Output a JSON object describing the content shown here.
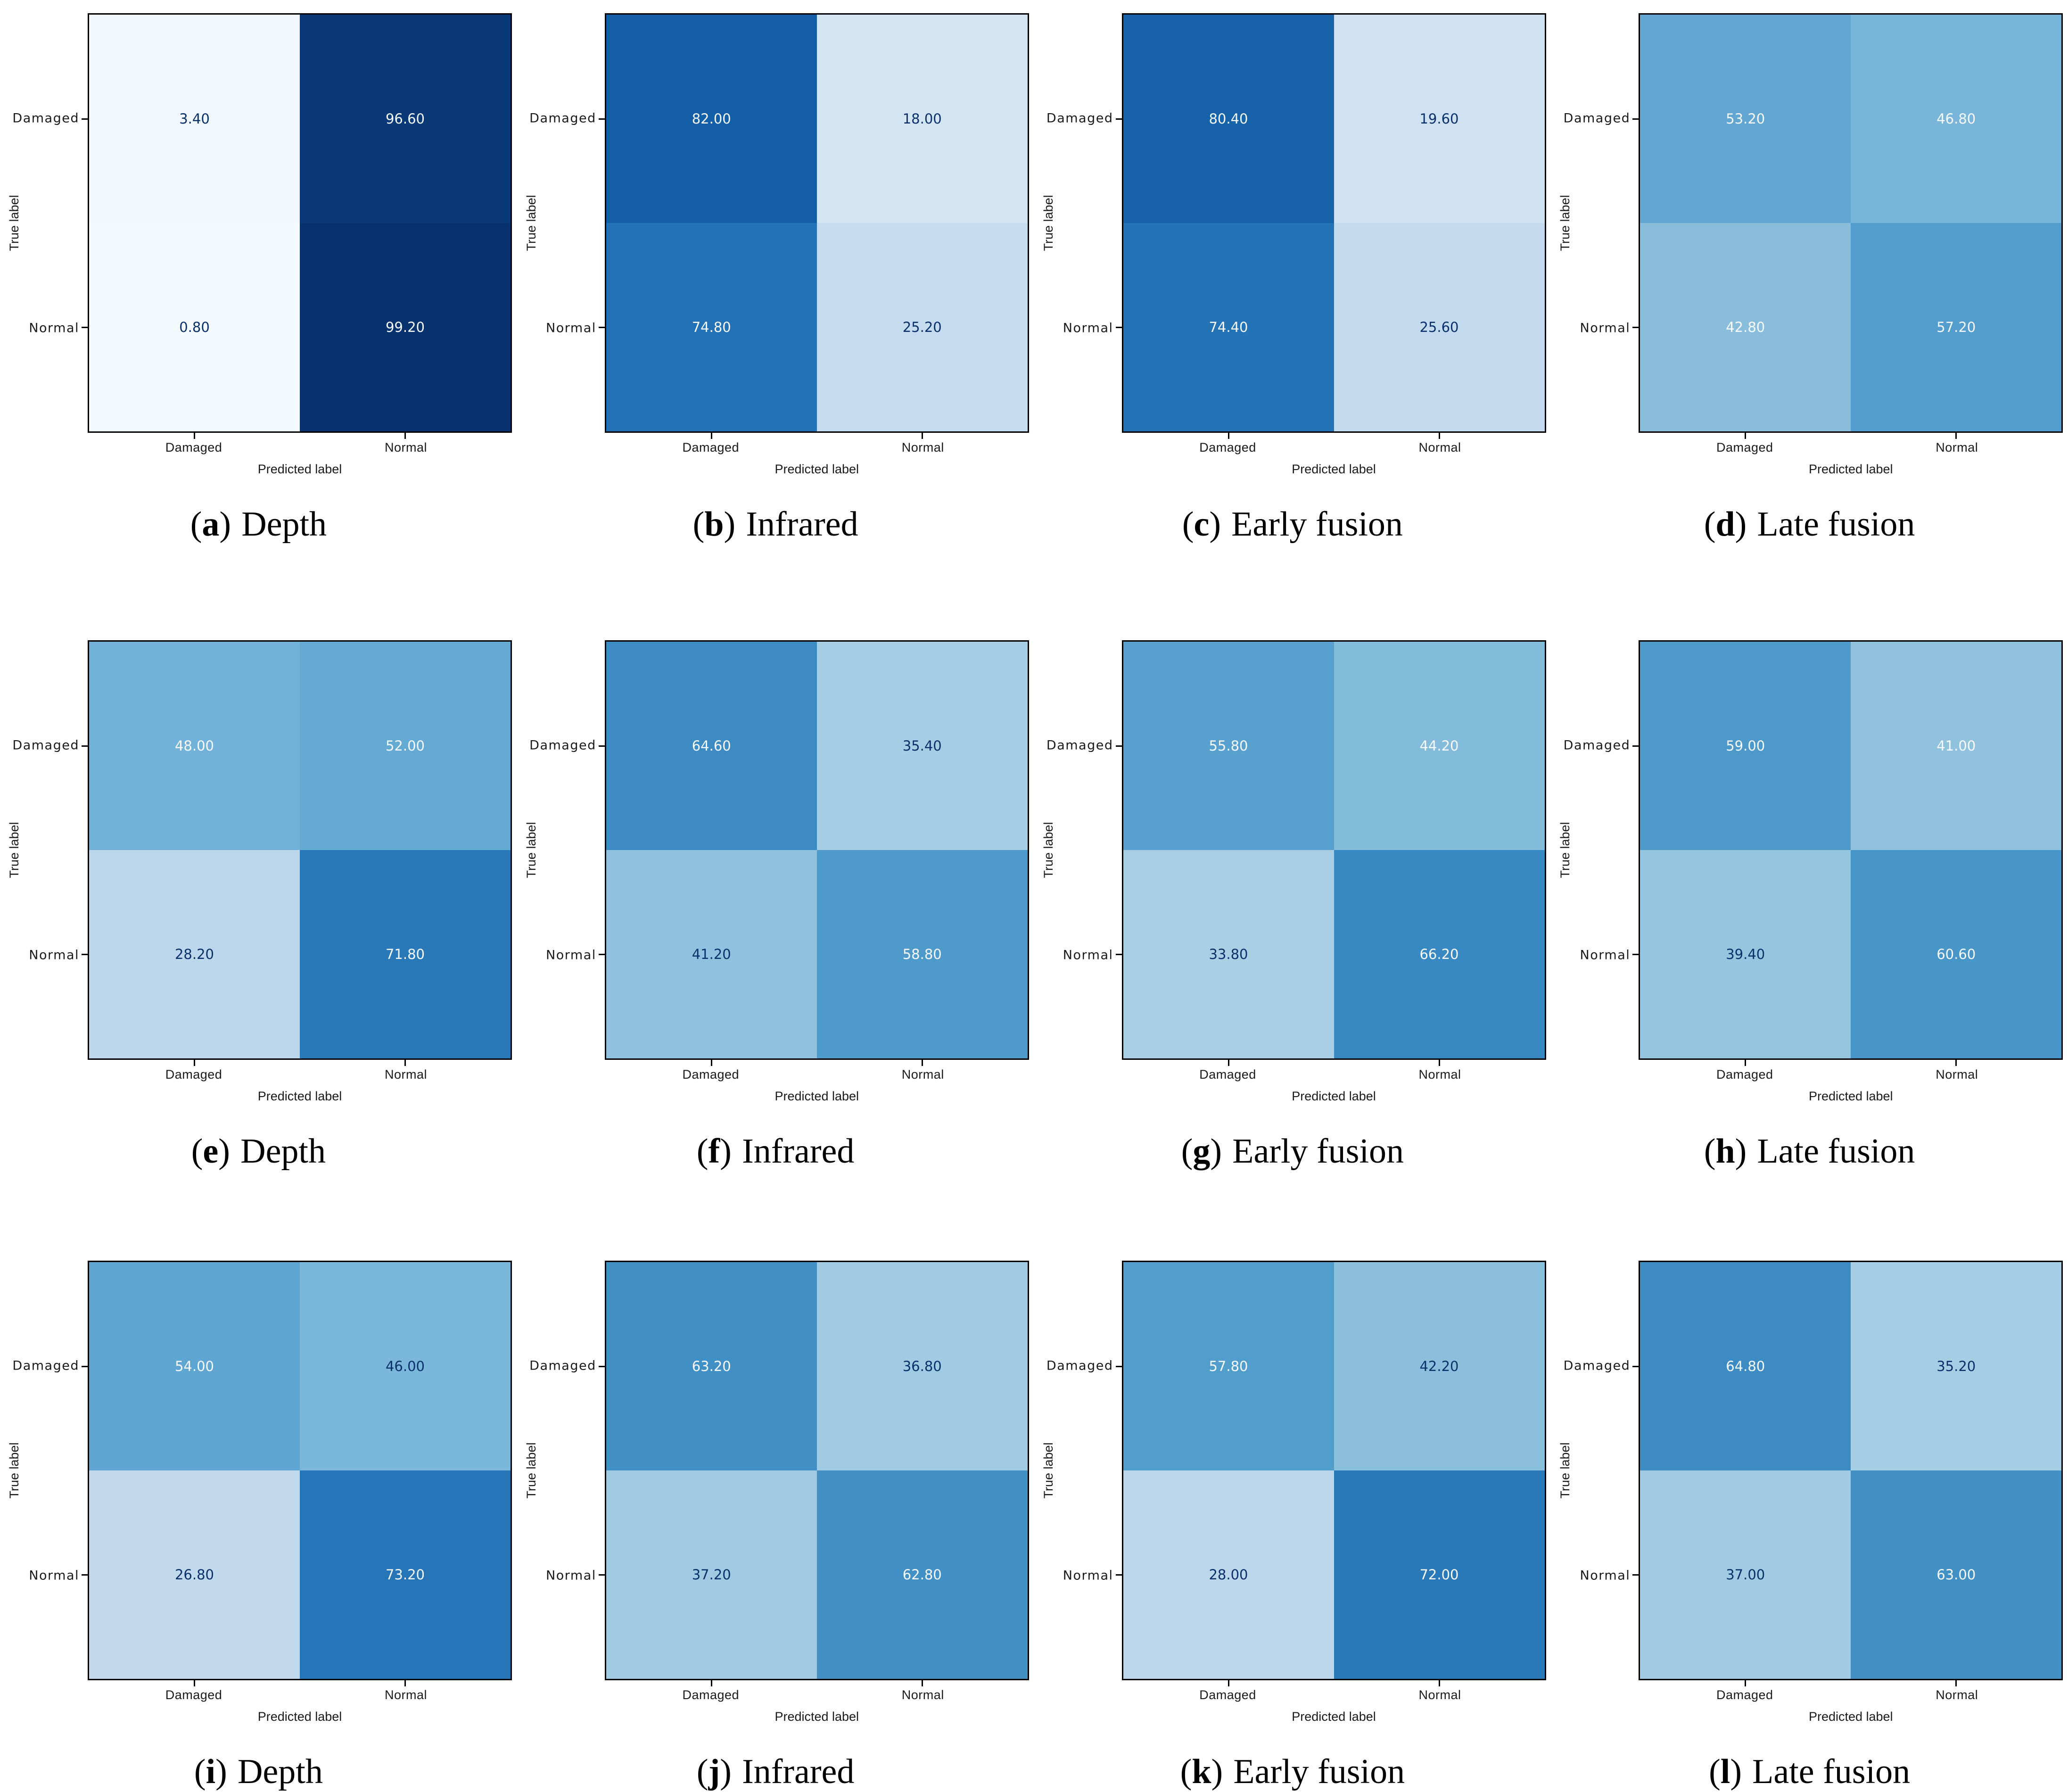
{
  "grid": {
    "rows": 3,
    "cols": 4
  },
  "axes": {
    "xlabel": "Predicted label",
    "ylabel": "True label",
    "x_tick_labels": [
      "Damaged",
      "Normal"
    ],
    "y_tick_labels": [
      "Damaged",
      "Normal"
    ]
  },
  "colors": {
    "background": "#ffffff",
    "spine": "#000000",
    "axis_text": "#1a1a1a",
    "caption_text": "#000000",
    "cell_text_light": "#f7fbff",
    "cell_text_dark": "#08306b",
    "colormap": "Blues",
    "colormap_stops": [
      "#f7fbff",
      "#deebf7",
      "#c6dbef",
      "#9ecae1",
      "#6baed6",
      "#4292c6",
      "#2171b5",
      "#08519c",
      "#08306b"
    ]
  },
  "chart_data": [
    {
      "id": "a",
      "type": "heatmap",
      "title": "Depth",
      "caption": {
        "pre": "(",
        "letter": "a",
        "post": ")",
        "title": "Depth"
      },
      "xlabel": "Predicted label",
      "ylabel": "True label",
      "x_categories": [
        "Damaged",
        "Normal"
      ],
      "y_categories": [
        "Damaged",
        "Normal"
      ],
      "vmin": 0,
      "vmax": 100,
      "matrix": [
        [
          3.4,
          96.6
        ],
        [
          0.8,
          99.2
        ]
      ],
      "cells": [
        {
          "value": 3.4,
          "label": "3.40",
          "bg": "#f0f7fd",
          "fg": "#08306b"
        },
        {
          "value": 96.6,
          "label": "96.60",
          "bg": "#093977",
          "fg": "#f7fbff"
        },
        {
          "value": 0.8,
          "label": "0.80",
          "bg": "#f5fafe",
          "fg": "#08306b"
        },
        {
          "value": 99.2,
          "label": "99.20",
          "bg": "#08326e",
          "fg": "#f7fbff"
        }
      ]
    },
    {
      "id": "b",
      "type": "heatmap",
      "title": "Infrared",
      "caption": {
        "pre": "(",
        "letter": "b",
        "post": ")",
        "title": "Infrared"
      },
      "xlabel": "Predicted label",
      "ylabel": "True label",
      "x_categories": [
        "Damaged",
        "Normal"
      ],
      "y_categories": [
        "Damaged",
        "Normal"
      ],
      "vmin": 0,
      "vmax": 100,
      "matrix": [
        [
          82.0,
          18.0
        ],
        [
          74.8,
          25.2
        ]
      ],
      "cells": [
        {
          "value": 82.0,
          "label": "82.00",
          "bg": "#135fa7",
          "fg": "#f7fbff"
        },
        {
          "value": 18.0,
          "label": "18.00",
          "bg": "#d3e4f3",
          "fg": "#08306b"
        },
        {
          "value": 74.8,
          "label": "74.80",
          "bg": "#2272b5",
          "fg": "#f7fbff"
        },
        {
          "value": 25.2,
          "label": "25.20",
          "bg": "#c5dbef",
          "fg": "#08306b"
        }
      ]
    },
    {
      "id": "c",
      "type": "heatmap",
      "title": "Early fusion",
      "caption": {
        "pre": "(",
        "letter": "c",
        "post": ")",
        "title": "Early fusion"
      },
      "xlabel": "Predicted label",
      "ylabel": "True label",
      "x_categories": [
        "Damaged",
        "Normal"
      ],
      "y_categories": [
        "Damaged",
        "Normal"
      ],
      "vmin": 0,
      "vmax": 100,
      "matrix": [
        [
          80.4,
          19.6
        ],
        [
          74.4,
          25.6
        ]
      ],
      "cells": [
        {
          "value": 80.4,
          "label": "80.40",
          "bg": "#1663aa",
          "fg": "#f7fbff"
        },
        {
          "value": 19.6,
          "label": "19.60",
          "bg": "#d0e2f2",
          "fg": "#08306b"
        },
        {
          "value": 74.4,
          "label": "74.40",
          "bg": "#2373b6",
          "fg": "#f7fbff"
        },
        {
          "value": 25.6,
          "label": "25.60",
          "bg": "#c4daee",
          "fg": "#08306b"
        }
      ]
    },
    {
      "id": "d",
      "type": "heatmap",
      "title": "Late fusion",
      "caption": {
        "pre": "(",
        "letter": "d",
        "post": ")",
        "title": "Late fusion"
      },
      "xlabel": "Predicted label",
      "ylabel": "True label",
      "x_categories": [
        "Damaged",
        "Normal"
      ],
      "y_categories": [
        "Damaged",
        "Normal"
      ],
      "vmin": 0,
      "vmax": 100,
      "matrix": [
        [
          53.2,
          46.8
        ],
        [
          42.8,
          57.2
        ]
      ],
      "cells": [
        {
          "value": 53.2,
          "label": "53.20",
          "bg": "#61a7d2",
          "fg": "#f7fbff"
        },
        {
          "value": 46.8,
          "label": "46.80",
          "bg": "#78b5d9",
          "fg": "#f7fbff"
        },
        {
          "value": 42.8,
          "label": "42.80",
          "bg": "#88bedc",
          "fg": "#f7fbff"
        },
        {
          "value": 57.2,
          "label": "57.20",
          "bg": "#539ecd",
          "fg": "#f7fbff"
        }
      ]
    },
    {
      "id": "e",
      "type": "heatmap",
      "title": "Depth",
      "caption": {
        "pre": "(",
        "letter": "e",
        "post": ")",
        "title": "Depth"
      },
      "xlabel": "Predicted label",
      "ylabel": "True label",
      "x_categories": [
        "Damaged",
        "Normal"
      ],
      "y_categories": [
        "Damaged",
        "Normal"
      ],
      "vmin": 0,
      "vmax": 100,
      "matrix": [
        [
          48.0,
          52.0
        ],
        [
          28.2,
          71.8
        ]
      ],
      "cells": [
        {
          "value": 48.0,
          "label": "48.00",
          "bg": "#73b2d8",
          "fg": "#f7fbff"
        },
        {
          "value": 52.0,
          "label": "52.00",
          "bg": "#64aad3",
          "fg": "#f7fbff"
        },
        {
          "value": 28.2,
          "label": "28.20",
          "bg": "#bcd7eb",
          "fg": "#08306b"
        },
        {
          "value": 71.8,
          "label": "71.80",
          "bg": "#2979b9",
          "fg": "#f7fbff"
        }
      ]
    },
    {
      "id": "f",
      "type": "heatmap",
      "title": "Infrared",
      "caption": {
        "pre": "(",
        "letter": "f",
        "post": ")",
        "title": "Infrared"
      },
      "xlabel": "Predicted label",
      "ylabel": "True label",
      "x_categories": [
        "Damaged",
        "Normal"
      ],
      "y_categories": [
        "Damaged",
        "Normal"
      ],
      "vmin": 0,
      "vmax": 100,
      "matrix": [
        [
          64.6,
          35.4
        ],
        [
          41.2,
          58.8
        ]
      ],
      "cells": [
        {
          "value": 64.6,
          "label": "64.60",
          "bg": "#3c8cc3",
          "fg": "#f7fbff"
        },
        {
          "value": 35.4,
          "label": "35.40",
          "bg": "#a5cde3",
          "fg": "#08306b"
        },
        {
          "value": 41.2,
          "label": "41.20",
          "bg": "#8fc2de",
          "fg": "#08306b"
        },
        {
          "value": 58.8,
          "label": "58.80",
          "bg": "#4e9acb",
          "fg": "#f7fbff"
        }
      ]
    },
    {
      "id": "g",
      "type": "heatmap",
      "title": "Early fusion",
      "caption": {
        "pre": "(",
        "letter": "g",
        "post": ")",
        "title": "Early fusion"
      },
      "xlabel": "Predicted label",
      "ylabel": "True label",
      "x_categories": [
        "Damaged",
        "Normal"
      ],
      "y_categories": [
        "Damaged",
        "Normal"
      ],
      "vmin": 0,
      "vmax": 100,
      "matrix": [
        [
          55.8,
          44.2
        ],
        [
          33.8,
          66.2
        ]
      ],
      "cells": [
        {
          "value": 55.8,
          "label": "55.80",
          "bg": "#58a1cf",
          "fg": "#f7fbff"
        },
        {
          "value": 44.2,
          "label": "44.20",
          "bg": "#83bbdb",
          "fg": "#f7fbff"
        },
        {
          "value": 33.8,
          "label": "33.80",
          "bg": "#aacfe5",
          "fg": "#08306b"
        },
        {
          "value": 66.2,
          "label": "66.20",
          "bg": "#3888c1",
          "fg": "#f7fbff"
        }
      ]
    },
    {
      "id": "h",
      "type": "heatmap",
      "title": "Late fusion",
      "caption": {
        "pre": "(",
        "letter": "h",
        "post": ")",
        "title": "Late fusion"
      },
      "xlabel": "Predicted label",
      "ylabel": "True label",
      "x_categories": [
        "Damaged",
        "Normal"
      ],
      "y_categories": [
        "Damaged",
        "Normal"
      ],
      "vmin": 0,
      "vmax": 100,
      "matrix": [
        [
          59.0,
          41.0
        ],
        [
          39.4,
          60.6
        ]
      ],
      "cells": [
        {
          "value": 59.0,
          "label": "59.00",
          "bg": "#4d9aca",
          "fg": "#f7fbff"
        },
        {
          "value": 41.0,
          "label": "41.00",
          "bg": "#90c2de",
          "fg": "#f7fbff"
        },
        {
          "value": 39.4,
          "label": "39.40",
          "bg": "#96c6df",
          "fg": "#08306b"
        },
        {
          "value": 60.6,
          "label": "60.60",
          "bg": "#4896c8",
          "fg": "#f7fbff"
        }
      ]
    },
    {
      "id": "i",
      "type": "heatmap",
      "title": "Depth",
      "caption": {
        "pre": "(",
        "letter": "i",
        "post": ")",
        "title": "Depth"
      },
      "xlabel": "Predicted label",
      "ylabel": "True label",
      "x_categories": [
        "Damaged",
        "Normal"
      ],
      "y_categories": [
        "Damaged",
        "Normal"
      ],
      "vmin": 0,
      "vmax": 100,
      "matrix": [
        [
          54.0,
          46.0
        ],
        [
          26.8,
          73.2
        ]
      ],
      "cells": [
        {
          "value": 54.0,
          "label": "54.00",
          "bg": "#5ea5d1",
          "fg": "#f7fbff"
        },
        {
          "value": 46.0,
          "label": "46.00",
          "bg": "#7bb7da",
          "fg": "#08306b"
        },
        {
          "value": 26.8,
          "label": "26.80",
          "bg": "#c0d9ed",
          "fg": "#08306b"
        },
        {
          "value": 73.2,
          "label": "73.20",
          "bg": "#2676b7",
          "fg": "#f7fbff"
        }
      ]
    },
    {
      "id": "j",
      "type": "heatmap",
      "title": "Infrared",
      "caption": {
        "pre": "(",
        "letter": "j",
        "post": ")",
        "title": "Infrared"
      },
      "xlabel": "Predicted label",
      "ylabel": "True label",
      "x_categories": [
        "Damaged",
        "Normal"
      ],
      "y_categories": [
        "Damaged",
        "Normal"
      ],
      "vmin": 0,
      "vmax": 100,
      "matrix": [
        [
          63.2,
          36.8
        ],
        [
          37.2,
          62.8
        ]
      ],
      "cells": [
        {
          "value": 63.2,
          "label": "63.20",
          "bg": "#4090c5",
          "fg": "#f7fbff"
        },
        {
          "value": 36.8,
          "label": "36.80",
          "bg": "#a0cbe2",
          "fg": "#08306b"
        },
        {
          "value": 37.2,
          "label": "37.20",
          "bg": "#9fcae1",
          "fg": "#08306b"
        },
        {
          "value": 62.8,
          "label": "62.80",
          "bg": "#4191c6",
          "fg": "#f7fbff"
        }
      ]
    },
    {
      "id": "k",
      "type": "heatmap",
      "title": "Early fusion",
      "caption": {
        "pre": "(",
        "letter": "k",
        "post": ")",
        "title": "Early fusion"
      },
      "xlabel": "Predicted label",
      "ylabel": "True label",
      "x_categories": [
        "Damaged",
        "Normal"
      ],
      "y_categories": [
        "Damaged",
        "Normal"
      ],
      "vmin": 0,
      "vmax": 100,
      "matrix": [
        [
          57.8,
          42.2
        ],
        [
          28.0,
          72.0
        ]
      ],
      "cells": [
        {
          "value": 57.8,
          "label": "57.80",
          "bg": "#519dcc",
          "fg": "#f7fbff"
        },
        {
          "value": 42.2,
          "label": "42.20",
          "bg": "#8bc0dd",
          "fg": "#08306b"
        },
        {
          "value": 28.0,
          "label": "28.00",
          "bg": "#bcd7ec",
          "fg": "#08306b"
        },
        {
          "value": 72.0,
          "label": "72.00",
          "bg": "#2979b9",
          "fg": "#f7fbff"
        }
      ]
    },
    {
      "id": "l",
      "type": "heatmap",
      "title": "Late fusion",
      "caption": {
        "pre": "(",
        "letter": "l",
        "post": ")",
        "title": "Late fusion"
      },
      "xlabel": "Predicted label",
      "ylabel": "True label",
      "x_categories": [
        "Damaged",
        "Normal"
      ],
      "y_categories": [
        "Damaged",
        "Normal"
      ],
      "vmin": 0,
      "vmax": 100,
      "matrix": [
        [
          64.8,
          35.2
        ],
        [
          37.0,
          63.0
        ]
      ],
      "cells": [
        {
          "value": 64.8,
          "label": "64.80",
          "bg": "#3c8cc3",
          "fg": "#f7fbff"
        },
        {
          "value": 35.2,
          "label": "35.20",
          "bg": "#a5cde4",
          "fg": "#08306b"
        },
        {
          "value": 37.0,
          "label": "37.00",
          "bg": "#a0cbe2",
          "fg": "#08306b"
        },
        {
          "value": 63.0,
          "label": "63.00",
          "bg": "#4191c5",
          "fg": "#f7fbff"
        }
      ]
    }
  ]
}
